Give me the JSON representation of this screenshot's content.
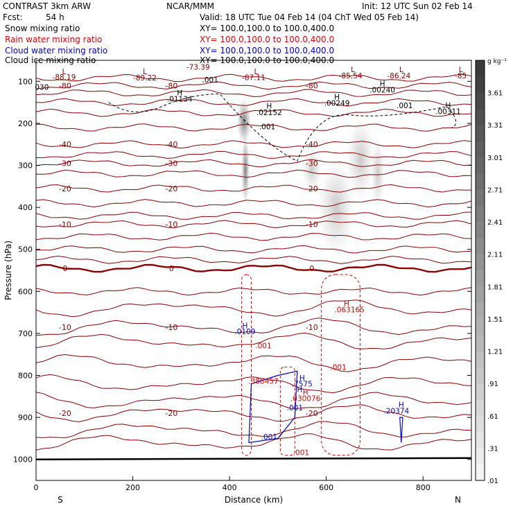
{
  "header": {
    "model": "CONTRAST  3km ARW",
    "center": "NCAR/MMM",
    "init": "Init: 12 UTC Sun 02 Feb 14",
    "fcst_label": "Fcst:",
    "fcst_value": "54 h",
    "valid": "Valid: 18 UTC Tue 04 Feb 14 (04 ChT Wed 05 Feb 14)"
  },
  "fields": [
    {
      "name": "Snow mixing ratio",
      "xy": "XY=  100.0,100.0 to 100.0,400.0",
      "color": "#000000"
    },
    {
      "name": "Rain water mixing ratio",
      "xy": "XY=  100.0,100.0 to 100.0,400.0",
      "color": "#e00000"
    },
    {
      "name": "Cloud water mixing ratio",
      "xy": "XY=  100.0,100.0 to 100.0,400.0",
      "color": "#0000cc"
    },
    {
      "name": "Cloud ice mixing ratio",
      "xy": "XY=  100.0,100.0 to 100.0,400.0",
      "color": "#000000"
    }
  ],
  "chart_data": {
    "type": "cross-section contour",
    "xlabel": "Distance (km)",
    "ylabel": "Pressure (hPa)",
    "xlim": [
      0,
      900
    ],
    "ylim": [
      1050,
      50
    ],
    "x_ticks": [
      0,
      200,
      400,
      600,
      800
    ],
    "y_ticks": [
      100,
      200,
      300,
      400,
      500,
      600,
      700,
      800,
      900,
      1000
    ],
    "x_end_labels": {
      "left": "S",
      "right": "N"
    },
    "colorbar": {
      "unit": "g kg⁻¹",
      "labels": [
        "3.61",
        "3.31",
        "3.01",
        "2.71",
        "2.41",
        "2.11",
        "1.81",
        "1.51",
        "1.21",
        ".91",
        ".61",
        ".31",
        ".01"
      ],
      "colors": {
        "low": "#f4f4f4",
        "high": "#3a3a3a"
      }
    },
    "temperature_contours": [
      {
        "label": "-80",
        "p": 110
      },
      {
        "label": "-40",
        "p": 250
      },
      {
        "label": "-30",
        "p": 295
      },
      {
        "label": "-20",
        "p": 355
      },
      {
        "label": "-10",
        "p": 440
      },
      {
        "label": "0",
        "p": 545
      },
      {
        "label": "-10",
        "p": 685
      },
      {
        "label": "-20",
        "p": 890
      }
    ],
    "annotations": [
      {
        "text": "L",
        "x": 58,
        "p": 83,
        "color": "#8b0000"
      },
      {
        "text": "-88.19",
        "x": 58,
        "p": 96,
        "color": "#8b0000"
      },
      {
        "text": "L",
        "x": 225,
        "p": 83,
        "color": "#8b0000"
      },
      {
        "text": "-89.22",
        "x": 225,
        "p": 98,
        "color": "#8b0000"
      },
      {
        "text": "-73.39",
        "x": 335,
        "p": 72,
        "color": "#8b0000"
      },
      {
        "text": ".001",
        "x": 360,
        "p": 103,
        "color": "#000000"
      },
      {
        "text": "L",
        "x": 455,
        "p": 83,
        "color": "#8b0000"
      },
      {
        "text": "-87.11",
        "x": 450,
        "p": 97,
        "color": "#8b0000"
      },
      {
        "text": "L",
        "x": 655,
        "p": 78,
        "color": "#8b0000"
      },
      {
        "text": "-85.54",
        "x": 650,
        "p": 93,
        "color": "#8b0000"
      },
      {
        "text": "L",
        "x": 755,
        "p": 78,
        "color": "#8b0000"
      },
      {
        "text": "-86.24",
        "x": 750,
        "p": 93,
        "color": "#8b0000"
      },
      {
        "text": "L",
        "x": 878,
        "p": 78,
        "color": "#8b0000"
      },
      {
        "text": "-85",
        "x": 878,
        "p": 93,
        "color": "#8b0000"
      },
      {
        "text": "030",
        "x": 12,
        "p": 120,
        "color": "#000000"
      },
      {
        "text": "H",
        "x": 297,
        "p": 133,
        "color": "#000000"
      },
      {
        "text": ".01134",
        "x": 297,
        "p": 148,
        "color": "#000000"
      },
      {
        "text": "H",
        "x": 482,
        "p": 165,
        "color": "#000000"
      },
      {
        "text": ".02152",
        "x": 482,
        "p": 180,
        "color": "#000000"
      },
      {
        "text": ".001",
        "x": 478,
        "p": 214,
        "color": "#000000"
      },
      {
        "text": "H",
        "x": 622,
        "p": 143,
        "color": "#000000"
      },
      {
        "text": ".00249",
        "x": 622,
        "p": 158,
        "color": "#000000"
      },
      {
        "text": "H",
        "x": 716,
        "p": 112,
        "color": "#000000"
      },
      {
        "text": ".00240",
        "x": 716,
        "p": 127,
        "color": "#000000"
      },
      {
        "text": ".001",
        "x": 762,
        "p": 164,
        "color": "#000000"
      },
      {
        "text": "H",
        "x": 852,
        "p": 163,
        "color": "#000000"
      },
      {
        "text": ".00311",
        "x": 852,
        "p": 178,
        "color": "#000000"
      },
      {
        "text": "H",
        "x": 642,
        "p": 635,
        "color": "#e00000"
      },
      {
        "text": ".063165",
        "x": 648,
        "p": 650,
        "color": "#e00000"
      },
      {
        "text": "H",
        "x": 432,
        "p": 688,
        "color": "#0000cc"
      },
      {
        "text": ".0109",
        "x": 432,
        "p": 702,
        "color": "#0000cc"
      },
      {
        "text": ".001",
        "x": 470,
        "p": 736,
        "color": "#e00000"
      },
      {
        "text": ".001",
        "x": 625,
        "p": 787,
        "color": "#e00000"
      },
      {
        "text": ".388457",
        "x": 470,
        "p": 820,
        "color": "#e00000"
      },
      {
        "text": "H",
        "x": 550,
        "p": 812,
        "color": "#0000cc"
      },
      {
        "text": ".7575",
        "x": 550,
        "p": 826,
        "color": "#0000cc"
      },
      {
        "text": "H",
        "x": 557,
        "p": 846,
        "color": "#e00000"
      },
      {
        "text": ".030076",
        "x": 557,
        "p": 861,
        "color": "#e00000"
      },
      {
        "text": ".001",
        "x": 535,
        "p": 883,
        "color": "#0000cc"
      },
      {
        "text": "H",
        "x": 755,
        "p": 876,
        "color": "#0000cc"
      },
      {
        "text": ".20374",
        "x": 745,
        "p": 891,
        "color": "#0000cc"
      },
      {
        "text": ".001",
        "x": 482,
        "p": 953,
        "color": "#0000cc"
      },
      {
        "text": ".001",
        "x": 548,
        "p": 990,
        "color": "#e00000"
      },
      {
        "text": "H",
        "x": 545,
        "p": 840,
        "color": "#0000cc"
      }
    ]
  }
}
